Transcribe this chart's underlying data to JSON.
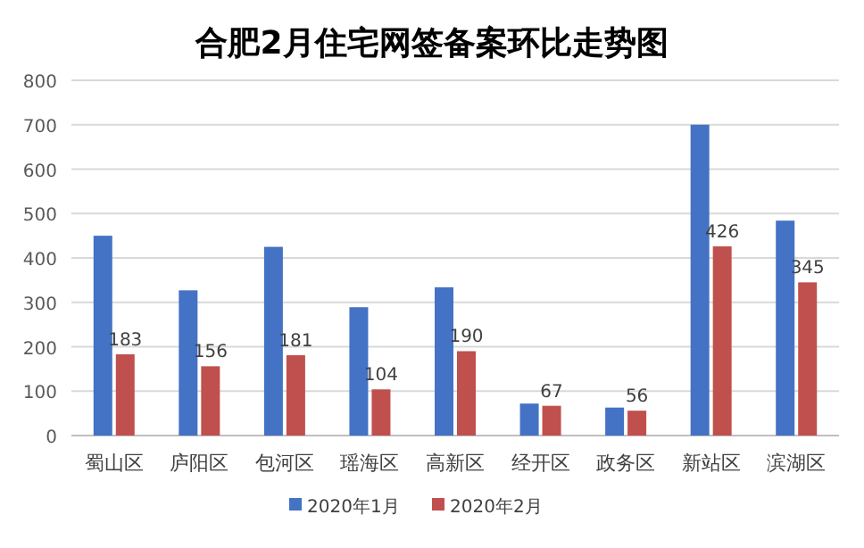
{
  "chart_data": {
    "type": "bar",
    "title": "合肥2月住宅网签备案环比走势图",
    "categories": [
      "蜀山区",
      "庐阳区",
      "包河区",
      "瑶海区",
      "高新区",
      "经开区",
      "政务区",
      "新站区",
      "滨湖区"
    ],
    "series": [
      {
        "name": "2020年1月",
        "color": "#4472c4",
        "values": [
          450,
          327,
          425,
          289,
          334,
          72,
          63,
          700,
          484
        ]
      },
      {
        "name": "2020年2月",
        "color": "#c0504d",
        "values": [
          183,
          156,
          181,
          104,
          190,
          67,
          56,
          426,
          345
        ],
        "value_labels": [
          "183",
          "156",
          "181",
          "104",
          "190",
          "67",
          "56",
          "426",
          "345"
        ]
      }
    ],
    "ylim": [
      0,
      800
    ],
    "yticks": [
      0,
      100,
      200,
      300,
      400,
      500,
      600,
      700,
      800
    ],
    "grid": "y",
    "legend": "bottom"
  }
}
